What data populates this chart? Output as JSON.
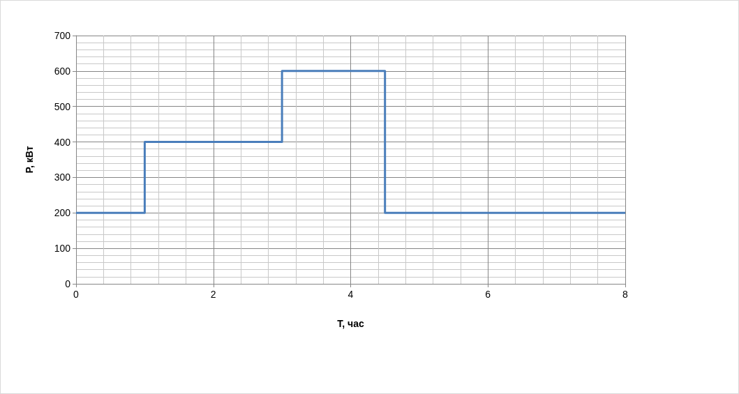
{
  "chart_data": {
    "type": "step",
    "xlabel": "T, час",
    "ylabel": "P, кВт",
    "x": [
      0,
      1,
      3,
      4.5,
      8
    ],
    "values": [
      200,
      400,
      600,
      200,
      200
    ],
    "color": "#4a7ebb",
    "xlim": [
      0,
      8
    ],
    "xticks": [
      0,
      2,
      4,
      6,
      8
    ],
    "ylim": [
      0,
      700
    ],
    "yticks": [
      0,
      100,
      200,
      300,
      400,
      500,
      600,
      700
    ],
    "grid": true
  }
}
